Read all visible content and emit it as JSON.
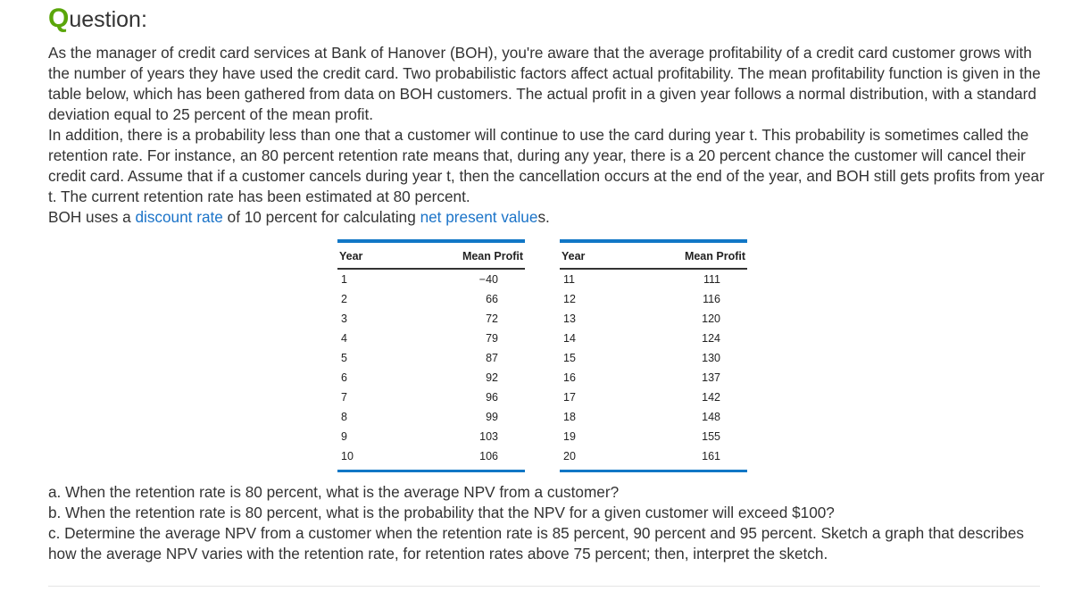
{
  "title": {
    "first": "Q",
    "rest": "uestion:"
  },
  "body": {
    "p1": "As the manager of credit card services at Bank of Hanover (BOH), you're aware that the average profitability of a credit card customer grows with the number of years they have used the credit card. Two probabilistic factors affect actual profitability. The mean profitability function is given in the table below, which has been gathered from data on BOH customers. The actual profit in a given year follows a normal distribution, with a standard deviation equal to 25 percent of the mean profit.",
    "p2": "In addition, there is a probability less than one that a customer will continue to use the card during year t. This probability is sometimes called the retention rate. For instance, an 80 percent retention rate means that, during any year, there is a 20 percent chance the customer will cancel their credit card. Assume that if a customer cancels during year t, then the cancellation occurs at the end of the year, and BOH still gets profits from year t. The current retention rate has been estimated at 80 percent.",
    "p3_a": "BOH uses a ",
    "p3_link1": "discount rate",
    "p3_b": " of 10 percent for calculating ",
    "p3_link2": "net present value",
    "p3_c": "s."
  },
  "table": {
    "headers": [
      "Year",
      "Mean Profit"
    ],
    "left": [
      [
        "1",
        "−40"
      ],
      [
        "2",
        "66"
      ],
      [
        "3",
        "72"
      ],
      [
        "4",
        "79"
      ],
      [
        "5",
        "87"
      ],
      [
        "6",
        "92"
      ],
      [
        "7",
        "96"
      ],
      [
        "8",
        "99"
      ],
      [
        "9",
        "103"
      ],
      [
        "10",
        "106"
      ]
    ],
    "right": [
      [
        "11",
        "111"
      ],
      [
        "12",
        "116"
      ],
      [
        "13",
        "120"
      ],
      [
        "14",
        "124"
      ],
      [
        "15",
        "130"
      ],
      [
        "16",
        "137"
      ],
      [
        "17",
        "142"
      ],
      [
        "18",
        "148"
      ],
      [
        "19",
        "155"
      ],
      [
        "20",
        "161"
      ]
    ]
  },
  "questions": [
    "a. When the retention rate is 80 percent, what is the average NPV from a customer?",
    "b. When the retention rate is 80 percent, what is the probability that the NPV for a given customer will exceed $100?",
    "c. Determine the average NPV from a customer when the retention rate is 85 percent, 90 percent and 95 percent. Sketch a graph that describes how the average NPV varies with the retention rate, for retention rates above 75 percent; then, interpret the sketch."
  ]
}
